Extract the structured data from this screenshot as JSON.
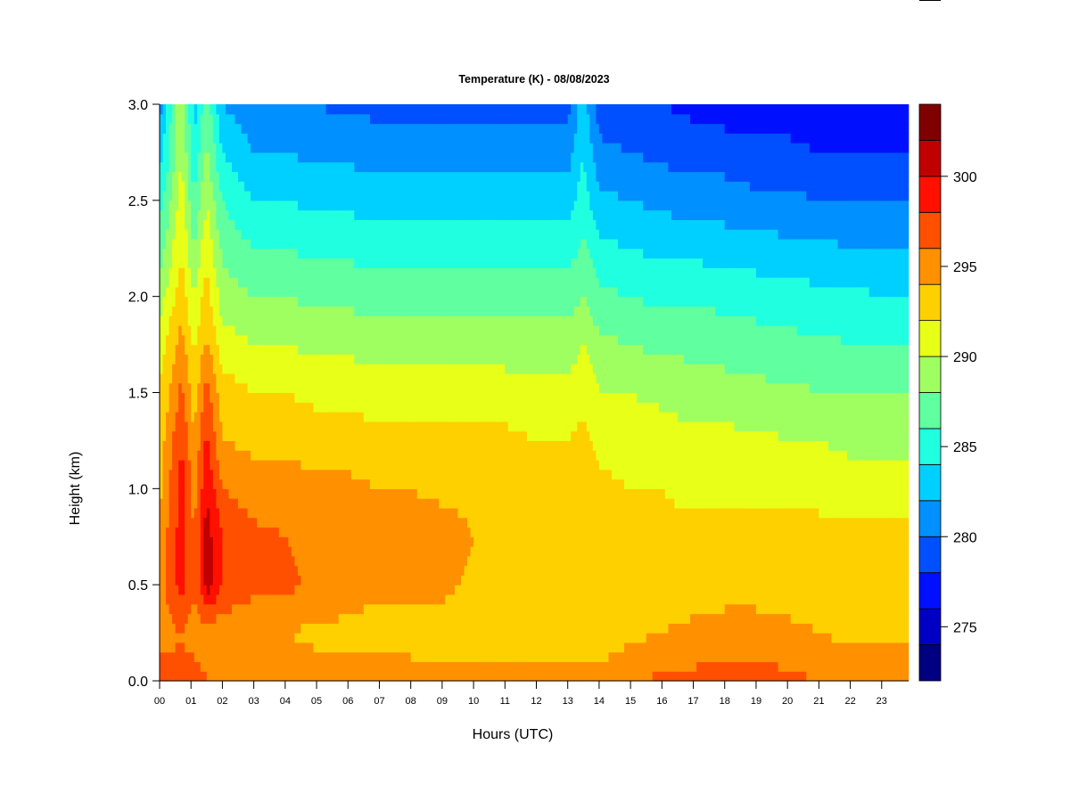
{
  "chart_data": {
    "type": "heatmap",
    "title": "Temperature (K) - 08/08/2023",
    "xlabel": "Hours (UTC)",
    "ylabel": "Height (km)",
    "xlim": [
      0,
      23.85
    ],
    "ylim": [
      0,
      3.0
    ],
    "x_tick_labels": [
      "00",
      "01",
      "02",
      "03",
      "04",
      "05",
      "06",
      "07",
      "08",
      "09",
      "10",
      "11",
      "12",
      "13",
      "14",
      "15",
      "16",
      "17",
      "18",
      "19",
      "20",
      "21",
      "22",
      "23"
    ],
    "y_ticks": [
      0.0,
      0.5,
      1.0,
      1.5,
      2.0,
      2.5,
      3.0
    ],
    "y_tick_labels": [
      "0.0",
      "0.5",
      "1.0",
      "1.5",
      "2.0",
      "2.5",
      "3.0"
    ],
    "colorbar": {
      "levels": [
        272,
        274,
        276,
        278,
        280,
        282,
        284,
        286,
        288,
        290,
        292,
        294,
        296,
        298,
        300,
        302,
        304
      ],
      "colors": [
        "#000080",
        "#0000C4",
        "#0010FF",
        "#0050FF",
        "#0090FF",
        "#00D0FF",
        "#20FFE0",
        "#60FFA0",
        "#A0FF60",
        "#E8FF18",
        "#FFD000",
        "#FF9000",
        "#FF5000",
        "#FF1000",
        "#C00000",
        "#800000"
      ],
      "ticks": [
        275,
        280,
        285,
        290,
        295,
        300
      ],
      "tick_labels": [
        "275",
        "280",
        "285",
        "290",
        "295",
        "300"
      ]
    },
    "heights_km": [
      0.0,
      0.25,
      0.5,
      0.75,
      1.0,
      1.25,
      1.5,
      1.75,
      2.0,
      2.25,
      2.5,
      2.75,
      3.0
    ],
    "hours": [
      0,
      0.7,
      1.1,
      1.5,
      2,
      3,
      4,
      5,
      6,
      7,
      8,
      9,
      10,
      11,
      12,
      13,
      13.5,
      14,
      15,
      16,
      17,
      18,
      19,
      20,
      21,
      22,
      23,
      23.85
    ],
    "temperature_K": [
      [
        297,
        295,
        295,
        294.5,
        293.5,
        293,
        292,
        291,
        289,
        287,
        285,
        283,
        281
      ],
      [
        296.5,
        296,
        299,
        299,
        299,
        298,
        296.5,
        295,
        293,
        292,
        291,
        290,
        290
      ],
      [
        297,
        295,
        296,
        296,
        295,
        294,
        293,
        291.5,
        290,
        288,
        286,
        284.5,
        283
      ],
      [
        296,
        295,
        301,
        301,
        300,
        298.5,
        297,
        294.5,
        293,
        291.5,
        290,
        288.5,
        287.5
      ],
      [
        296,
        294.5,
        298,
        298,
        296,
        294,
        293,
        291,
        289,
        287.5,
        286,
        284,
        282
      ],
      [
        295.5,
        294.5,
        296.5,
        296.5,
        295,
        293.5,
        292,
        290,
        288,
        286,
        284,
        282,
        280.5
      ],
      [
        295.5,
        294,
        296.5,
        296,
        295,
        293.5,
        292,
        290,
        288,
        286,
        284,
        282,
        280.5
      ],
      [
        295,
        293.5,
        295.5,
        295.5,
        294.5,
        293,
        291.5,
        289.5,
        287.5,
        285.5,
        283.5,
        281.5,
        280
      ],
      [
        295,
        293.5,
        295,
        295.5,
        294.5,
        293,
        291.5,
        289.5,
        287.5,
        285.5,
        283.5,
        281.5,
        279.5
      ],
      [
        295,
        293,
        294.5,
        295.5,
        294,
        292.5,
        291,
        289,
        287,
        285,
        283,
        281,
        279.5
      ],
      [
        295,
        293,
        294.5,
        295,
        294,
        292.5,
        291,
        289,
        287,
        285,
        283,
        281,
        279.5
      ],
      [
        294.5,
        293,
        294.5,
        295,
        293.5,
        292.5,
        291,
        289,
        287,
        285,
        283,
        281,
        279.5
      ],
      [
        294.5,
        293,
        293.5,
        294,
        293.5,
        292.5,
        291,
        289,
        287,
        285,
        283,
        281,
        279.5
      ],
      [
        294.5,
        293,
        293.5,
        294,
        293,
        292.5,
        291,
        289,
        287,
        285,
        283,
        281,
        279.5
      ],
      [
        294.5,
        293,
        293.5,
        293.5,
        293,
        292,
        290.5,
        289,
        287,
        285,
        283,
        281,
        279.5
      ],
      [
        294.5,
        293,
        293.5,
        293.5,
        293,
        292,
        290.5,
        289,
        287,
        285,
        283,
        281,
        279.5
      ],
      [
        294.5,
        293.5,
        294,
        294,
        293.5,
        292.5,
        291.5,
        290,
        288,
        286.5,
        285,
        284,
        283
      ],
      [
        294.5,
        293,
        293,
        293,
        292.5,
        291.5,
        290,
        288.5,
        286.5,
        284.5,
        282.5,
        280.5,
        279
      ],
      [
        295.5,
        293.5,
        293,
        293,
        292,
        291,
        290,
        288,
        286,
        284,
        282,
        280,
        278.5
      ],
      [
        296.5,
        294,
        293,
        292.5,
        292,
        291,
        289.5,
        287.5,
        285.5,
        283.5,
        281.5,
        279.5,
        278
      ],
      [
        296.5,
        294.5,
        293,
        292.5,
        291.5,
        290.5,
        289,
        287.5,
        285.5,
        283.5,
        281,
        279,
        277.5
      ],
      [
        297.5,
        294.5,
        293.5,
        292.5,
        291.5,
        290.5,
        289,
        287,
        285.5,
        283,
        281,
        279,
        277
      ],
      [
        297,
        294.5,
        293.5,
        292.5,
        291.5,
        290.5,
        288.5,
        287,
        285,
        283,
        280.5,
        278.5,
        277
      ],
      [
        296.5,
        294.5,
        293,
        292.5,
        291.5,
        290,
        288.5,
        286.5,
        285,
        282.5,
        280.5,
        278.5,
        277
      ],
      [
        296,
        294,
        293,
        292.5,
        291.5,
        290,
        288,
        286.5,
        284.5,
        282.5,
        280,
        278,
        276.5
      ],
      [
        296,
        293.5,
        293,
        292.5,
        291,
        289.5,
        288,
        286,
        284.5,
        282,
        280,
        278,
        276.5
      ],
      [
        295.5,
        293.5,
        293,
        292.5,
        291,
        289.5,
        288,
        286,
        284,
        282,
        280,
        278,
        276.5
      ],
      [
        295.5,
        293.5,
        293,
        292.5,
        291,
        289.5,
        288,
        286,
        284,
        282,
        280,
        278,
        276.5
      ]
    ]
  }
}
